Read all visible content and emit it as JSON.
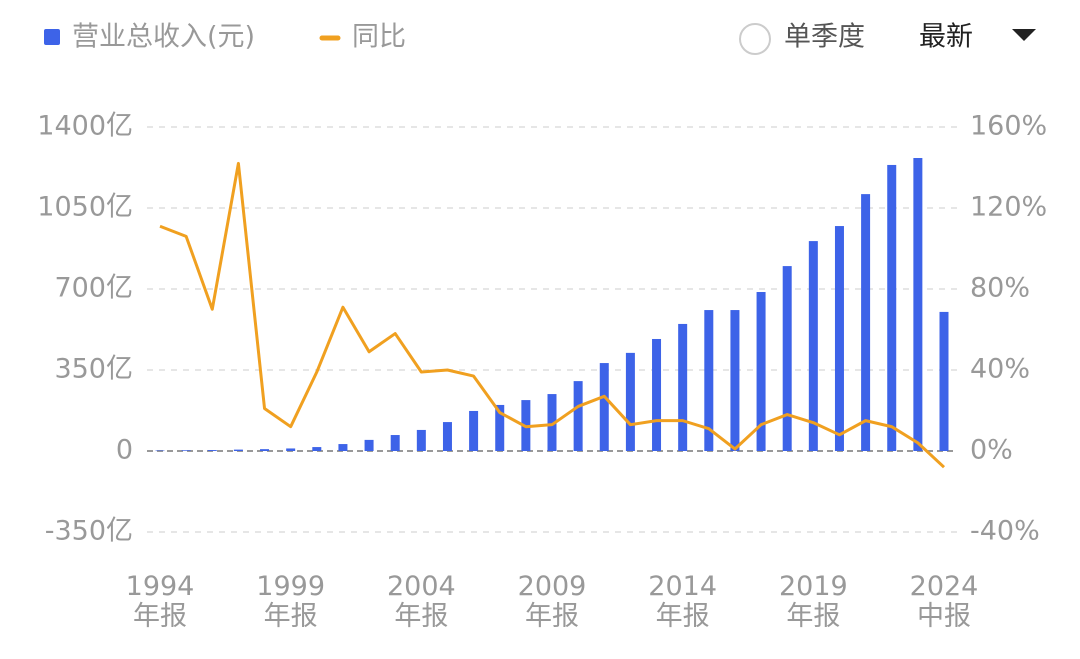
{
  "chart_data": {
    "type": "bar-line",
    "controls": {
      "single_quarter": "单季度",
      "period": "最新"
    },
    "categories": [
      "1994\n年报",
      null,
      null,
      null,
      null,
      "1999\n年报",
      null,
      null,
      null,
      null,
      "2004\n年报",
      null,
      null,
      null,
      null,
      "2009\n年报",
      null,
      null,
      null,
      null,
      "2014\n年报",
      null,
      null,
      null,
      null,
      "2019\n年报",
      null,
      null,
      null,
      null,
      "2024\n中报"
    ],
    "series": [
      {
        "name": "营业总收入(元)",
        "color": "#3d63e8",
        "type": "bar",
        "axis": "y",
        "values": [
          2,
          3,
          4,
          6,
          8,
          11,
          17,
          30,
          48,
          69,
          91,
          125,
          173,
          199,
          220,
          246,
          302,
          380,
          424,
          484,
          549,
          609,
          609,
          687,
          799,
          907,
          972,
          1110,
          1236,
          1266,
          601
        ]
      },
      {
        "name": "同比",
        "color": "#f0a020",
        "type": "line",
        "axis": "y2",
        "values": [
          111,
          106,
          70,
          142,
          21,
          12,
          39,
          71,
          49,
          58,
          39,
          40,
          37,
          19,
          12,
          13,
          22,
          27,
          13,
          15,
          15,
          11,
          1,
          13,
          18,
          14,
          8,
          15,
          12,
          4,
          -8
        ]
      }
    ],
    "ylim": [
      -350,
      1400
    ],
    "yticks": [
      {
        "value": -350,
        "label": "-350亿"
      },
      0,
      {
        "value": 350,
        "label": "350亿"
      },
      {
        "value": 700,
        "label": "700亿"
      },
      {
        "value": 1050,
        "label": "1050亿"
      },
      {
        "value": 1400,
        "label": "1400亿"
      }
    ],
    "y2lim": [
      -40,
      160
    ],
    "y2ticks": [
      {
        "value": -40,
        "label": "-40%"
      },
      {
        "value": 0,
        "label": "0%"
      },
      {
        "value": 40,
        "label": "40%"
      },
      {
        "value": 80,
        "label": "80%"
      },
      {
        "value": 120,
        "label": "120%"
      },
      {
        "value": 160,
        "label": "160%"
      }
    ],
    "grid": true
  }
}
